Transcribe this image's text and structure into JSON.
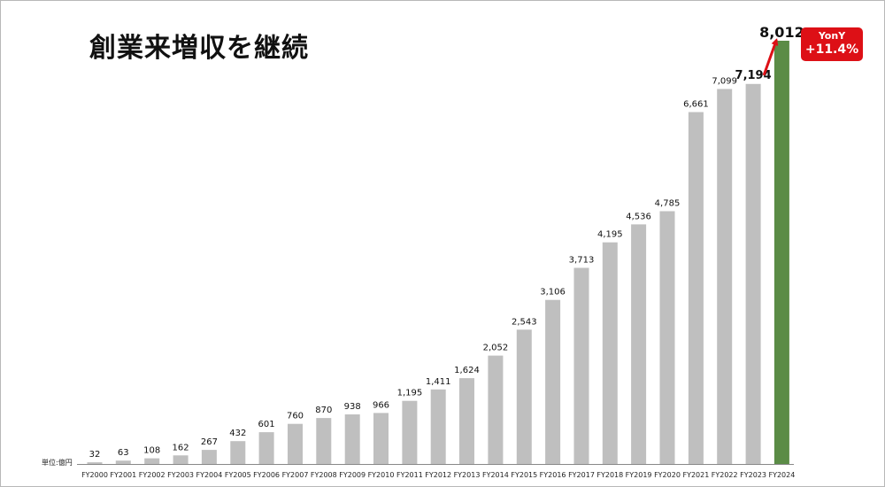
{
  "title": "創業来増収を継続",
  "unit_label": "単位:億円",
  "yoy_badge": {
    "label": "YonY",
    "value": "+11.4%"
  },
  "colors": {
    "bar": "#bfbfbf",
    "highlight": "#5b8c46",
    "arrow": "#dd1016",
    "badge": "#dd1016"
  },
  "chart_data": {
    "type": "bar",
    "title": "創業来増収を継続",
    "xlabel": "",
    "ylabel": "",
    "ylim": [
      0,
      8012
    ],
    "grid": false,
    "categories": [
      "FY2000",
      "FY2001",
      "FY2002",
      "FY2003",
      "FY2004",
      "FY2005",
      "FY2006",
      "FY2007",
      "FY2008",
      "FY2009",
      "FY2010",
      "FY2011",
      "FY2012",
      "FY2013",
      "FY2014",
      "FY2015",
      "FY2016",
      "FY2017",
      "FY2018",
      "FY2019",
      "FY2020",
      "FY2021",
      "FY2022",
      "FY2023",
      "FY2024"
    ],
    "values": [
      32,
      63,
      108,
      162,
      267,
      432,
      601,
      760,
      870,
      938,
      966,
      1195,
      1411,
      1624,
      2052,
      2543,
      3106,
      3713,
      4195,
      4536,
      4785,
      6661,
      7099,
      7194,
      8012
    ],
    "value_labels": [
      "32",
      "63",
      "108",
      "162",
      "267",
      "432",
      "601",
      "760",
      "870",
      "938",
      "966",
      "1,195",
      "1,411",
      "1,624",
      "2,052",
      "2,543",
      "3,106",
      "3,713",
      "4,195",
      "4,536",
      "4,785",
      "6,661",
      "7,099",
      "7,194",
      "8,012"
    ],
    "highlight_index": 24
  }
}
